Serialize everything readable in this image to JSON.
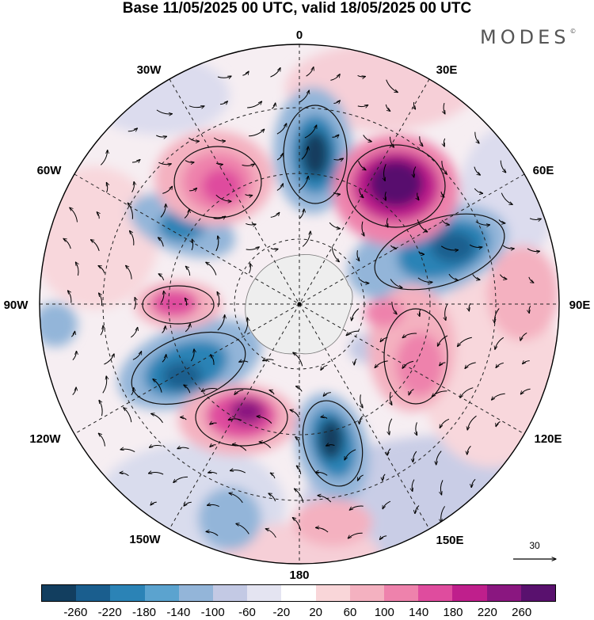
{
  "title": "Base 11/05/2025 00 UTC, valid 18/05/2025 00 UTC",
  "logo": {
    "text": "MODES",
    "mark": "©"
  },
  "longitude_labels": {
    "lon_0": "0",
    "lon_30e": "30E",
    "lon_60e": "60E",
    "lon_90e": "90E",
    "lon_120e": "120E",
    "lon_150e": "150E",
    "lon_180": "180",
    "lon_150w": "150W",
    "lon_120w": "120W",
    "lon_90w": "90W",
    "lon_60w": "60W",
    "lon_30w": "30W"
  },
  "vector_scale": {
    "value": "30"
  },
  "colorbar": {
    "colors": [
      "#123e5f",
      "#1a5e8e",
      "#2b83b6",
      "#5ba3cf",
      "#93b5d9",
      "#c3c9e4",
      "#e4e4f1",
      "#ffffff",
      "#f9d6d9",
      "#f4b1c0",
      "#ee82ac",
      "#df4c9e",
      "#bf1f8c",
      "#8a1780",
      "#59116e"
    ],
    "labels": [
      "-260",
      "-220",
      "-180",
      "-140",
      "-100",
      "-60",
      "-20",
      "20",
      "60",
      "100",
      "140",
      "180",
      "220",
      "260"
    ]
  }
}
